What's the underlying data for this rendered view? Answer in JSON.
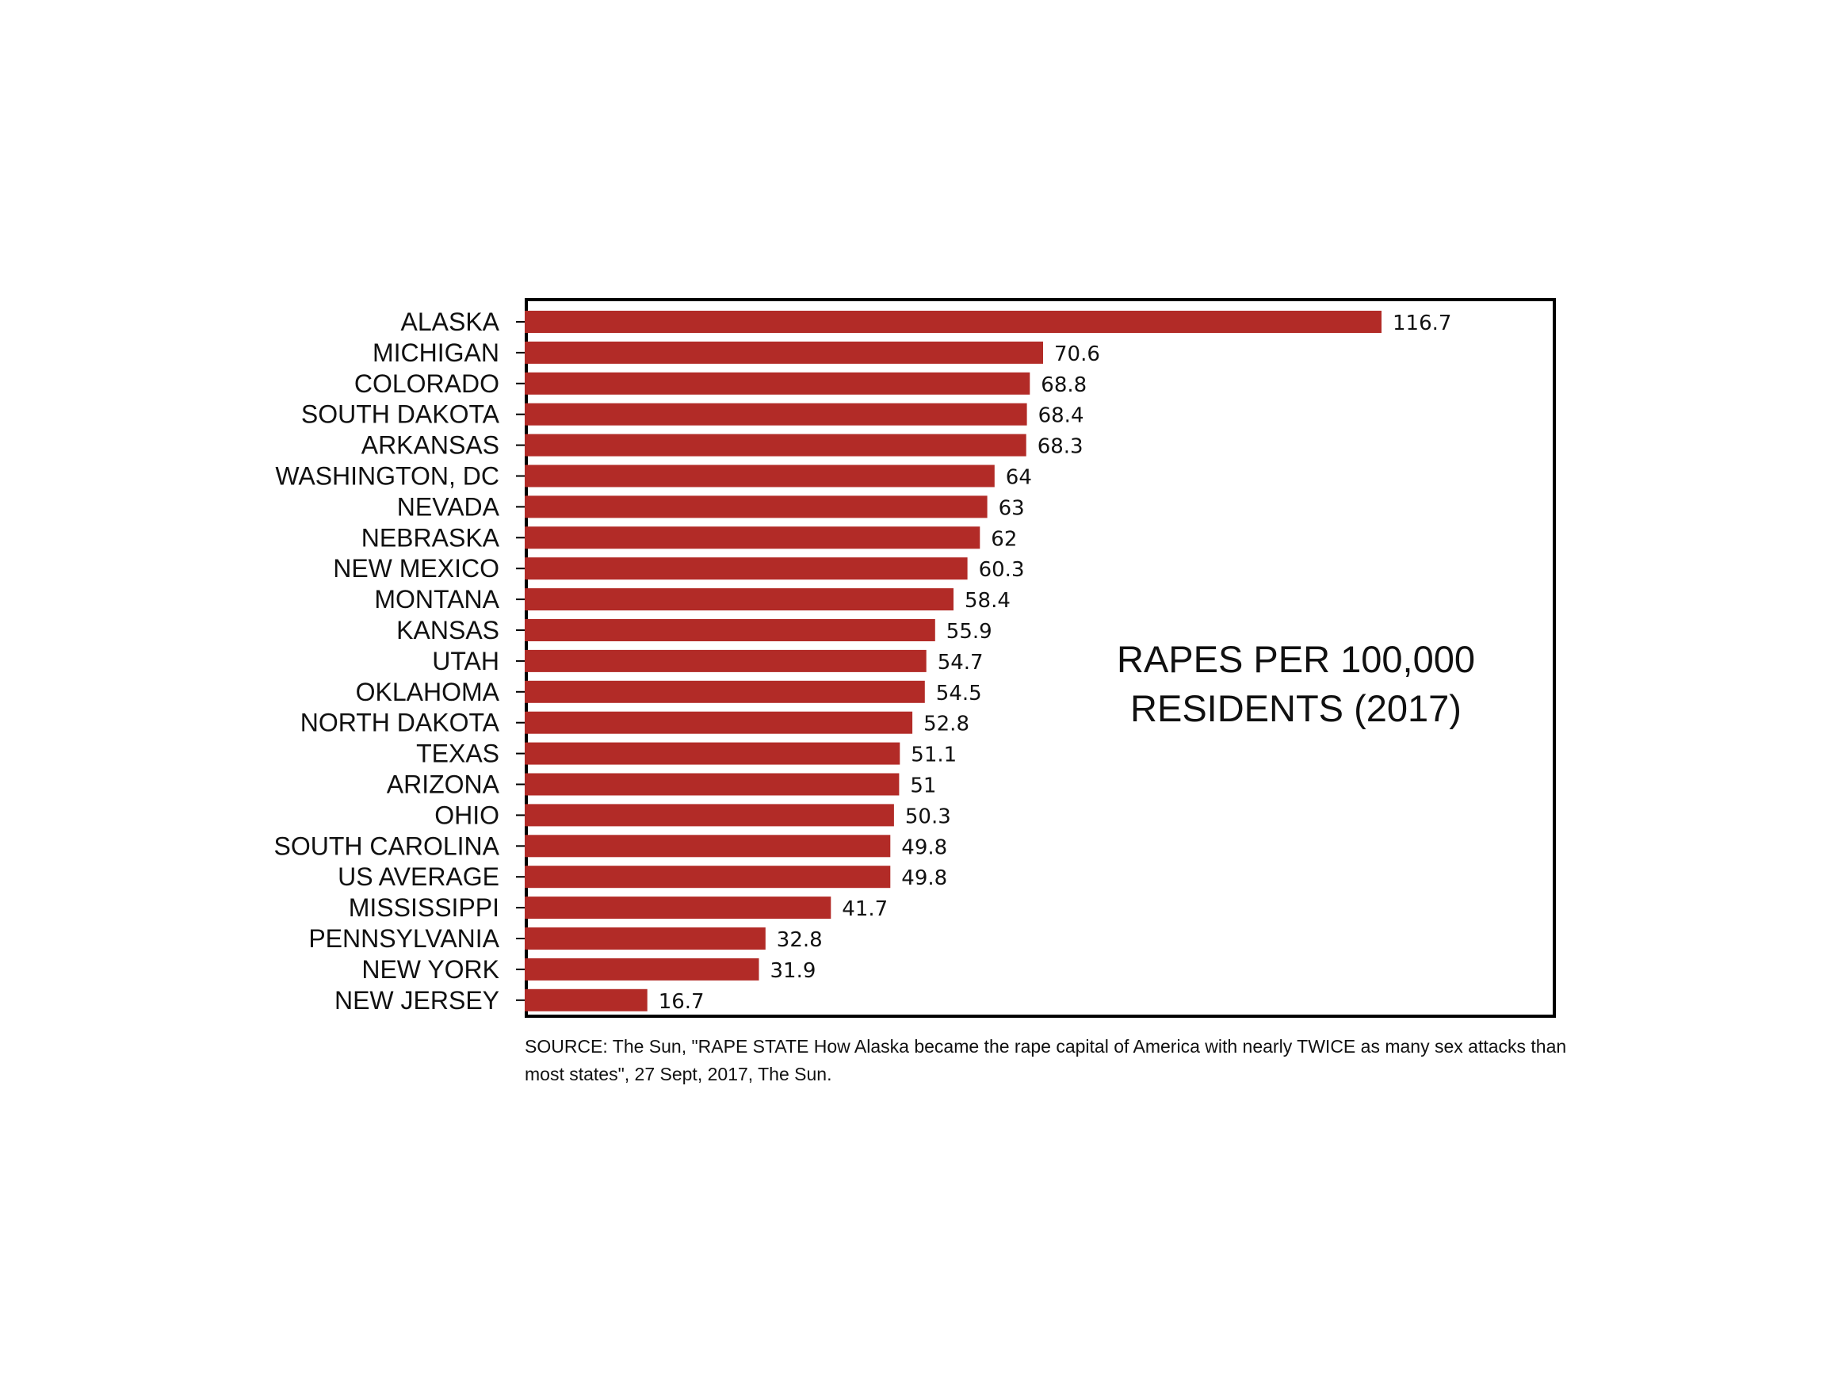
{
  "chart_data": {
    "type": "bar",
    "orientation": "horizontal",
    "title": "RAPES PER 100,000 RESIDENTS (2017)",
    "title_lines": [
      "RAPES PER 100,000",
      "RESIDENTS (2017)"
    ],
    "categories": [
      "ALASKA",
      "MICHIGAN",
      "COLORADO",
      "SOUTH DAKOTA",
      "ARKANSAS",
      "WASHINGTON, DC",
      "NEVADA",
      "NEBRASKA",
      "NEW MEXICO",
      "MONTANA",
      "KANSAS",
      "UTAH",
      "OKLAHOMA",
      "NORTH DAKOTA",
      "TEXAS",
      "ARIZONA",
      "OHIO",
      "SOUTH CAROLINA",
      "US AVERAGE",
      "MISSISSIPPI",
      "PENNSYLVANIA",
      "NEW YORK",
      "NEW JERSEY"
    ],
    "values": [
      116.7,
      70.6,
      68.8,
      68.4,
      68.3,
      64,
      63,
      62,
      60.3,
      58.4,
      55.9,
      54.7,
      54.5,
      52.8,
      51.1,
      51,
      50.3,
      49.8,
      49.8,
      41.7,
      32.8,
      31.9,
      16.7
    ],
    "value_labels": [
      "116.7",
      "70.6",
      "68.8",
      "68.4",
      "68.3",
      "64",
      "63",
      "62",
      "60.3",
      "58.4",
      "55.9",
      "54.7",
      "54.5",
      "52.8",
      "51.1",
      "51",
      "50.3",
      "49.8",
      "49.8",
      "41.7",
      "32.8",
      "31.9",
      "16.7"
    ],
    "xlim": [
      0,
      140
    ],
    "grid": false,
    "legend": "none",
    "bar_color": "#b22b27",
    "xlabel": "",
    "ylabel": ""
  },
  "source": "SOURCE: The Sun, \"RAPE STATE How Alaska became the rape capital of America with nearly TWICE as many sex attacks than most states\", 27 Sept, 2017, The Sun."
}
